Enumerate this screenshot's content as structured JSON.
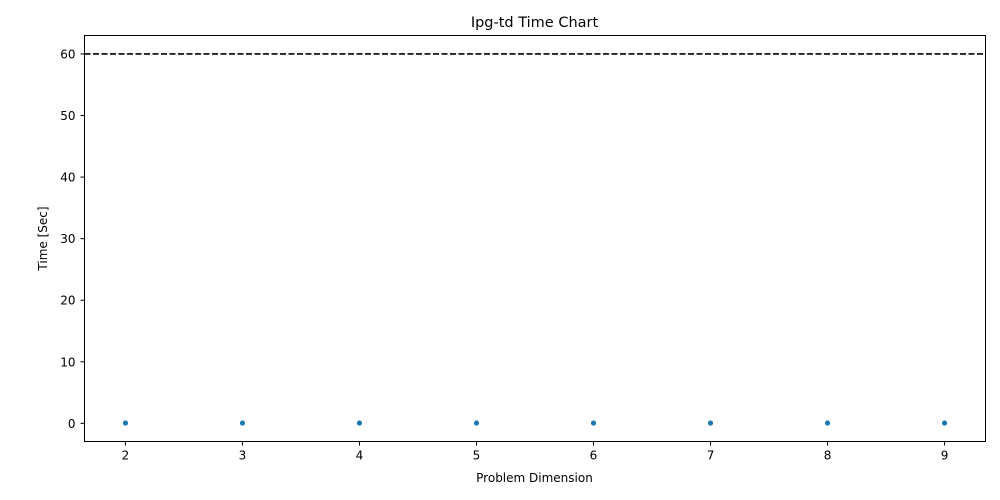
{
  "chart_data": {
    "type": "scatter",
    "title": "Ipg-td Time Chart",
    "xlabel": "Problem Dimension",
    "ylabel": "Time [Sec]",
    "x": [
      2,
      3,
      4,
      5,
      6,
      7,
      8,
      9
    ],
    "y": [
      0.05,
      0.05,
      0.05,
      0.05,
      0.05,
      0.05,
      0.05,
      0.05
    ],
    "xlim": [
      1.65,
      9.35
    ],
    "ylim": [
      -2.95,
      63
    ],
    "xticks": [
      2,
      3,
      4,
      5,
      6,
      7,
      8,
      9
    ],
    "yticks": [
      0,
      10,
      20,
      30,
      40,
      50,
      60
    ],
    "reference_line": {
      "y": 60,
      "style": "dashed",
      "color": "#000000"
    },
    "point_color": "#1f77b4",
    "grid": false,
    "legend": "none"
  }
}
